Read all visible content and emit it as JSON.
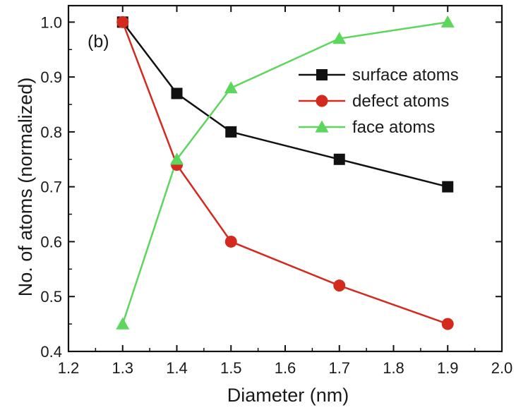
{
  "chart_data": {
    "type": "line",
    "panel_label": "(b)",
    "xlabel": "Diameter (nm)",
    "ylabel": "No. of atoms (normalized)",
    "xlim": [
      1.2,
      2.0
    ],
    "ylim": [
      0.4,
      1.03
    ],
    "x_ticks": [
      "1.2",
      "1.3",
      "1.4",
      "1.5",
      "1.6",
      "1.7",
      "1.8",
      "1.9",
      "2.0"
    ],
    "y_ticks": [
      "0.4",
      "0.5",
      "0.6",
      "0.7",
      "0.8",
      "0.9",
      "1.0"
    ],
    "grid": false,
    "legend_position": "top-right",
    "series": [
      {
        "name": "surface atoms",
        "color": "#111111",
        "marker": "square",
        "x": [
          1.3,
          1.4,
          1.5,
          1.7,
          1.9
        ],
        "y": [
          1.0,
          0.87,
          0.8,
          0.75,
          0.7
        ]
      },
      {
        "name": "defect atoms",
        "color": "#d42a1e",
        "marker": "circle",
        "x": [
          1.3,
          1.4,
          1.5,
          1.7,
          1.9
        ],
        "y": [
          1.0,
          0.74,
          0.6,
          0.52,
          0.45
        ]
      },
      {
        "name": "face atoms",
        "color": "#5cd65c",
        "marker": "triangle",
        "x": [
          1.3,
          1.4,
          1.5,
          1.7,
          1.9
        ],
        "y": [
          0.45,
          0.75,
          0.88,
          0.97,
          1.0
        ]
      }
    ]
  }
}
